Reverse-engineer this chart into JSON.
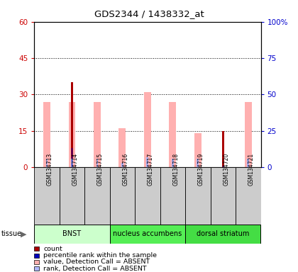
{
  "title": "GDS2344 / 1438332_at",
  "samples": [
    "GSM134713",
    "GSM134714",
    "GSM134715",
    "GSM134716",
    "GSM134717",
    "GSM134718",
    "GSM134719",
    "GSM134720",
    "GSM134721"
  ],
  "count_values": [
    0,
    35,
    0,
    0,
    0,
    0,
    0,
    15,
    0
  ],
  "rank_values": [
    0,
    13,
    0,
    0,
    0,
    0,
    0,
    1,
    0
  ],
  "absent_value": [
    27,
    27,
    27,
    16,
    31,
    27,
    14,
    0,
    27
  ],
  "absent_rank": [
    6,
    6,
    6,
    3,
    7,
    6,
    6,
    0,
    6
  ],
  "is_present_count": [
    false,
    true,
    false,
    false,
    false,
    false,
    false,
    true,
    false
  ],
  "is_present_rank": [
    false,
    true,
    false,
    false,
    false,
    false,
    false,
    true,
    false
  ],
  "tissues": [
    {
      "label": "BNST",
      "start": 0,
      "end": 3,
      "color": "#ccffcc"
    },
    {
      "label": "nucleus accumbens",
      "start": 3,
      "end": 6,
      "color": "#55ee55"
    },
    {
      "label": "dorsal striatum",
      "start": 6,
      "end": 9,
      "color": "#44dd44"
    }
  ],
  "ylim_left": [
    0,
    60
  ],
  "ylim_right": [
    0,
    100
  ],
  "yticks_left": [
    0,
    15,
    30,
    45,
    60
  ],
  "yticks_right": [
    0,
    25,
    50,
    75,
    100
  ],
  "left_tick_color": "#cc0000",
  "right_tick_color": "#0000cc",
  "absent_bar_color": "#ffb0b0",
  "absent_rank_color": "#b0b8ff",
  "count_color": "#aa0000",
  "rank_color": "#0000bb",
  "bg_color": "#ffffff",
  "legend_items": [
    {
      "color": "#aa0000",
      "label": "count"
    },
    {
      "color": "#0000bb",
      "label": "percentile rank within the sample"
    },
    {
      "color": "#ffb0b0",
      "label": "value, Detection Call = ABSENT"
    },
    {
      "color": "#b0b8ff",
      "label": "rank, Detection Call = ABSENT"
    }
  ]
}
